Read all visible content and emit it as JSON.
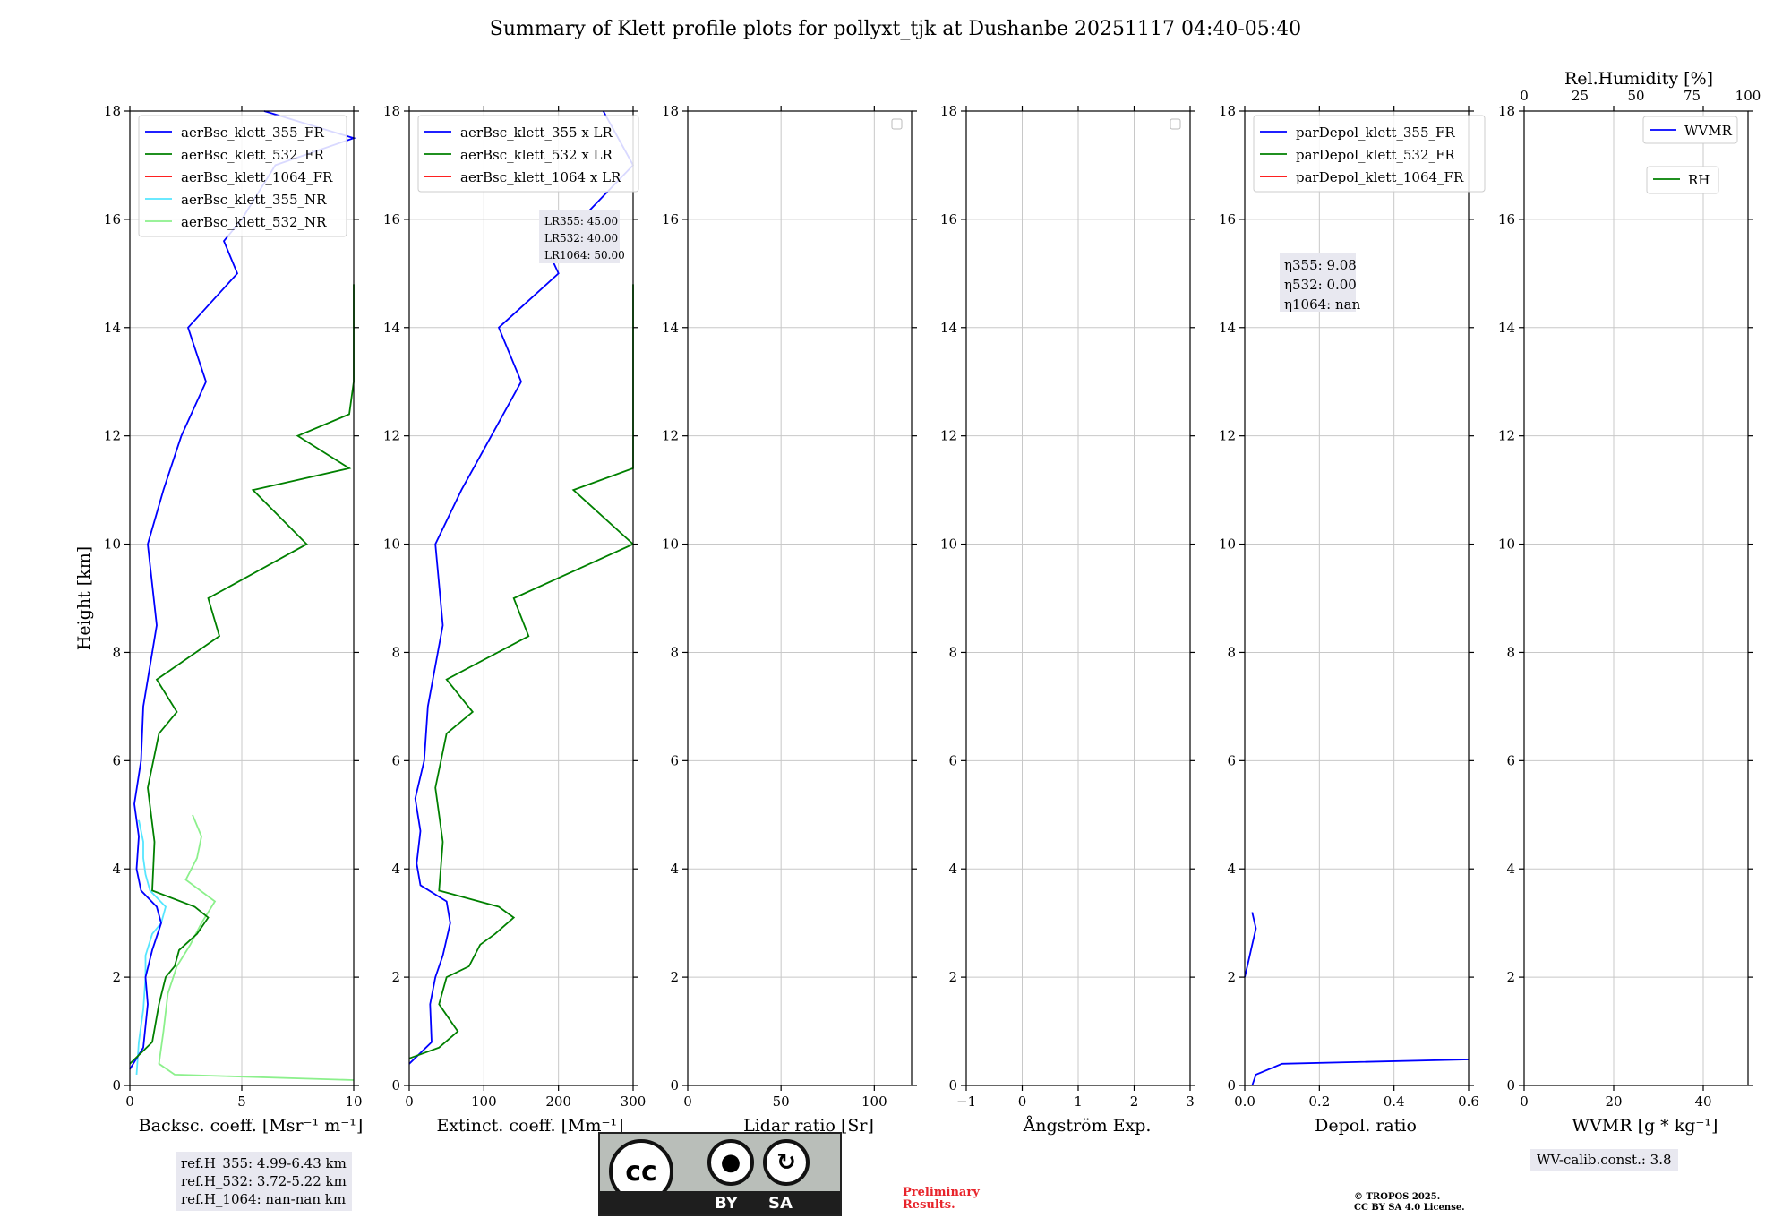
{
  "title": "Summary of Klett profile plots for pollyxt_tjk at Dushanbe 20251117 04:40-05:40",
  "colors": {
    "c355": "#0000ff",
    "c532": "#008000",
    "c1064": "#ff0000",
    "c355nr": "#55e6ff",
    "c532nr": "#8cf08c",
    "legend_bg": "#ffffff"
  },
  "chart_data": [
    {
      "type": "line",
      "panel": "backscatter",
      "ylabel": "Height [km]",
      "xlabel": "Backsc. coeff. [Msr⁻¹ m⁻¹]",
      "xlim": [
        0,
        10
      ],
      "ylim": [
        0,
        18
      ],
      "xticks": [
        "0",
        "5",
        "10"
      ],
      "xtick_values": [
        0,
        5,
        10
      ],
      "yticks": [
        "0",
        "2",
        "4",
        "6",
        "8",
        "10",
        "12",
        "14",
        "16",
        "18"
      ],
      "legend": [
        "aerBsc_klett_355_FR",
        "aerBsc_klett_532_FR",
        "aerBsc_klett_1064_FR",
        "aerBsc_klett_355_NR",
        "aerBsc_klett_532_NR"
      ],
      "series": [
        {
          "name": "aerBsc_klett_355_NR",
          "color": "c355nr",
          "pts": [
            [
              0.3,
              0.2
            ],
            [
              0.4,
              0.8
            ],
            [
              0.6,
              1.4
            ],
            [
              0.7,
              2.0
            ],
            [
              0.7,
              2.4
            ],
            [
              1.0,
              2.8
            ],
            [
              1.4,
              3.0
            ],
            [
              1.6,
              3.3
            ],
            [
              0.9,
              3.6
            ],
            [
              0.7,
              3.9
            ],
            [
              0.6,
              4.2
            ],
            [
              0.6,
              4.5
            ],
            [
              0.4,
              4.9
            ]
          ]
        },
        {
          "name": "aerBsc_klett_532_NR",
          "color": "c532nr",
          "pts": [
            [
              10,
              0.1
            ],
            [
              2.0,
              0.2
            ],
            [
              1.3,
              0.4
            ],
            [
              1.5,
              1.0
            ],
            [
              1.7,
              1.7
            ],
            [
              2.1,
              2.2
            ],
            [
              2.7,
              2.6
            ],
            [
              3.2,
              3.0
            ],
            [
              3.8,
              3.4
            ],
            [
              2.5,
              3.8
            ],
            [
              3.0,
              4.2
            ],
            [
              3.2,
              4.6
            ],
            [
              2.8,
              5.0
            ]
          ]
        },
        {
          "name": "aerBsc_klett_355_FR",
          "color": "c355",
          "pts": [
            [
              0.0,
              0.3
            ],
            [
              0.6,
              0.7
            ],
            [
              0.8,
              1.5
            ],
            [
              0.7,
              2.0
            ],
            [
              1.0,
              2.5
            ],
            [
              1.4,
              3.0
            ],
            [
              1.2,
              3.3
            ],
            [
              0.5,
              3.6
            ],
            [
              0.3,
              4.0
            ],
            [
              0.4,
              4.6
            ],
            [
              0.2,
              5.2
            ],
            [
              0.5,
              6.0
            ],
            [
              0.6,
              7.0
            ],
            [
              1.2,
              8.5
            ],
            [
              0.8,
              10.0
            ],
            [
              1.5,
              11.0
            ],
            [
              2.3,
              12.0
            ],
            [
              3.4,
              13.0
            ],
            [
              2.6,
              14.0
            ],
            [
              4.8,
              15.0
            ],
            [
              4.2,
              15.6
            ],
            [
              5.0,
              16.0
            ],
            [
              6.5,
              17.0
            ],
            [
              10,
              17.5
            ],
            [
              6.0,
              18.0
            ]
          ]
        },
        {
          "name": "aerBsc_klett_532_FR",
          "color": "c532",
          "pts": [
            [
              0.0,
              0.4
            ],
            [
              1.0,
              0.8
            ],
            [
              1.3,
              1.5
            ],
            [
              1.6,
              2.0
            ],
            [
              2.0,
              2.2
            ],
            [
              2.2,
              2.5
            ],
            [
              3.0,
              2.8
            ],
            [
              3.5,
              3.1
            ],
            [
              2.9,
              3.3
            ],
            [
              1.0,
              3.6
            ],
            [
              1.1,
              4.5
            ],
            [
              0.8,
              5.5
            ],
            [
              1.3,
              6.5
            ],
            [
              2.1,
              6.9
            ],
            [
              1.2,
              7.5
            ],
            [
              4.0,
              8.3
            ],
            [
              3.5,
              9.0
            ],
            [
              7.9,
              10.0
            ],
            [
              5.5,
              11.0
            ],
            [
              9.8,
              11.4
            ],
            [
              7.5,
              12.0
            ],
            [
              9.8,
              12.4
            ],
            [
              10,
              13.0
            ],
            [
              10,
              14.5
            ],
            [
              10,
              14.8
            ]
          ]
        }
      ],
      "ref_box": [
        "ref.H_355: 4.99-6.43 km",
        "ref.H_532: 3.72-5.22 km",
        "ref.H_1064: nan-nan km"
      ]
    },
    {
      "type": "line",
      "panel": "extinction",
      "xlabel": "Extinct. coeff. [Mm⁻¹]",
      "xlim": [
        0,
        300
      ],
      "ylim": [
        0,
        18
      ],
      "xticks": [
        "0",
        "100",
        "200",
        "300"
      ],
      "xtick_values": [
        0,
        100,
        200,
        300
      ],
      "yticks": [
        "0",
        "2",
        "4",
        "6",
        "8",
        "10",
        "12",
        "14",
        "16",
        "18"
      ],
      "legend": [
        "aerBsc_klett_355 x LR",
        "aerBsc_klett_532 x LR",
        "aerBsc_klett_1064 x LR"
      ],
      "lr_box": [
        "LR355: 45.00",
        "LR532: 40.00",
        "LR1064: 50.00"
      ],
      "series": [
        {
          "name": "aerBsc_klett_355 x LR",
          "color": "c355",
          "pts": [
            [
              0,
              0.4
            ],
            [
              30,
              0.8
            ],
            [
              28,
              1.5
            ],
            [
              35,
              2.0
            ],
            [
              45,
              2.4
            ],
            [
              55,
              3.0
            ],
            [
              50,
              3.4
            ],
            [
              15,
              3.7
            ],
            [
              10,
              4.1
            ],
            [
              15,
              4.7
            ],
            [
              8,
              5.3
            ],
            [
              20,
              6.0
            ],
            [
              25,
              7.0
            ],
            [
              45,
              8.5
            ],
            [
              35,
              10.0
            ],
            [
              70,
              11.0
            ],
            [
              110,
              12.0
            ],
            [
              150,
              13.0
            ],
            [
              120,
              14.0
            ],
            [
              200,
              15.0
            ],
            [
              180,
              15.6
            ],
            [
              230,
              16.0
            ],
            [
              300,
              17.0
            ],
            [
              260,
              18.0
            ]
          ]
        },
        {
          "name": "aerBsc_klett_532 x LR",
          "color": "c532",
          "pts": [
            [
              0,
              0.5
            ],
            [
              40,
              0.7
            ],
            [
              65,
              1.0
            ],
            [
              40,
              1.5
            ],
            [
              50,
              2.0
            ],
            [
              80,
              2.2
            ],
            [
              95,
              2.6
            ],
            [
              115,
              2.8
            ],
            [
              140,
              3.1
            ],
            [
              120,
              3.3
            ],
            [
              40,
              3.6
            ],
            [
              45,
              4.5
            ],
            [
              35,
              5.5
            ],
            [
              50,
              6.5
            ],
            [
              85,
              6.9
            ],
            [
              50,
              7.5
            ],
            [
              160,
              8.3
            ],
            [
              140,
              9.0
            ],
            [
              300,
              10.0
            ],
            [
              220,
              11.0
            ],
            [
              300,
              11.4
            ],
            [
              300,
              14.8
            ]
          ]
        }
      ]
    },
    {
      "type": "line",
      "panel": "lidar_ratio",
      "xlabel": "Lidar ratio [Sr]",
      "xlim": [
        0,
        120
      ],
      "ylim": [
        0,
        18
      ],
      "xticks": [
        "0",
        "50",
        "100"
      ],
      "xtick_values": [
        0,
        50,
        100
      ],
      "yticks": [
        "0",
        "2",
        "4",
        "6",
        "8",
        "10",
        "12",
        "14",
        "16",
        "18"
      ],
      "series": []
    },
    {
      "type": "line",
      "panel": "angstrom",
      "xlabel": "Ångström Exp.",
      "xlim": [
        -1,
        3
      ],
      "ylim": [
        0,
        18
      ],
      "xticks": [
        "−1",
        "0",
        "1",
        "2",
        "3"
      ],
      "xtick_values": [
        -1,
        0,
        1,
        2,
        3
      ],
      "yticks": [
        "0",
        "2",
        "4",
        "6",
        "8",
        "10",
        "12",
        "14",
        "16",
        "18"
      ],
      "series": []
    },
    {
      "type": "line",
      "panel": "depol",
      "xlabel": "Depol. ratio",
      "xlim": [
        0,
        0.6
      ],
      "ylim": [
        0,
        18
      ],
      "xticks": [
        "0.0",
        "0.2",
        "0.4",
        "0.6"
      ],
      "xtick_values": [
        0,
        0.2,
        0.4,
        0.6
      ],
      "yticks": [
        "0",
        "2",
        "4",
        "6",
        "8",
        "10",
        "12",
        "14",
        "16",
        "18"
      ],
      "legend": [
        "parDepol_klett_355_FR",
        "parDepol_klett_532_FR",
        "parDepol_klett_1064_FR"
      ],
      "eta_box": [
        "η355: 9.08",
        "η532: 0.00",
        "η1064: nan"
      ],
      "series": [
        {
          "name": "parDepol_klett_355_FR",
          "color": "c355",
          "pts": [
            [
              0.02,
              0.0
            ],
            [
              0.03,
              0.2
            ],
            [
              0.1,
              0.4
            ],
            [
              0.6,
              0.48
            ]
          ]
        },
        {
          "name": "parDepol_klett_355_FR_upper",
          "color": "c355",
          "pts": [
            [
              0.0,
              2.0
            ],
            [
              0.01,
              2.3
            ],
            [
              0.02,
              2.6
            ],
            [
              0.03,
              2.9
            ],
            [
              0.02,
              3.2
            ]
          ]
        }
      ]
    },
    {
      "type": "line",
      "panel": "wvmr",
      "xlabel": "WVMR [g * kg⁻¹]",
      "xlim": [
        0,
        50
      ],
      "ylim": [
        0,
        18
      ],
      "xticks": [
        "0",
        "20",
        "40"
      ],
      "xtick_values": [
        0,
        20,
        40
      ],
      "yticks": [
        "0",
        "2",
        "4",
        "6",
        "8",
        "10",
        "12",
        "14",
        "16",
        "18"
      ],
      "top_axis_label": "Rel.Humidity [%]",
      "top_xticks": [
        "0",
        "25",
        "50",
        "75",
        "100"
      ],
      "top_xtick_values": [
        0,
        25,
        50,
        75,
        100
      ],
      "legend": [
        "WVMR",
        "RH"
      ],
      "series": []
    }
  ],
  "footer": {
    "cc_by": "BY",
    "cc_sa": "SA",
    "cc_logo": "cc",
    "preliminary": [
      "Preliminary",
      "Results."
    ],
    "copyright": [
      "© TROPOS 2025.",
      "CC BY SA 4.0 License."
    ],
    "wv_calib": "WV-calib.const.: 3.8"
  }
}
